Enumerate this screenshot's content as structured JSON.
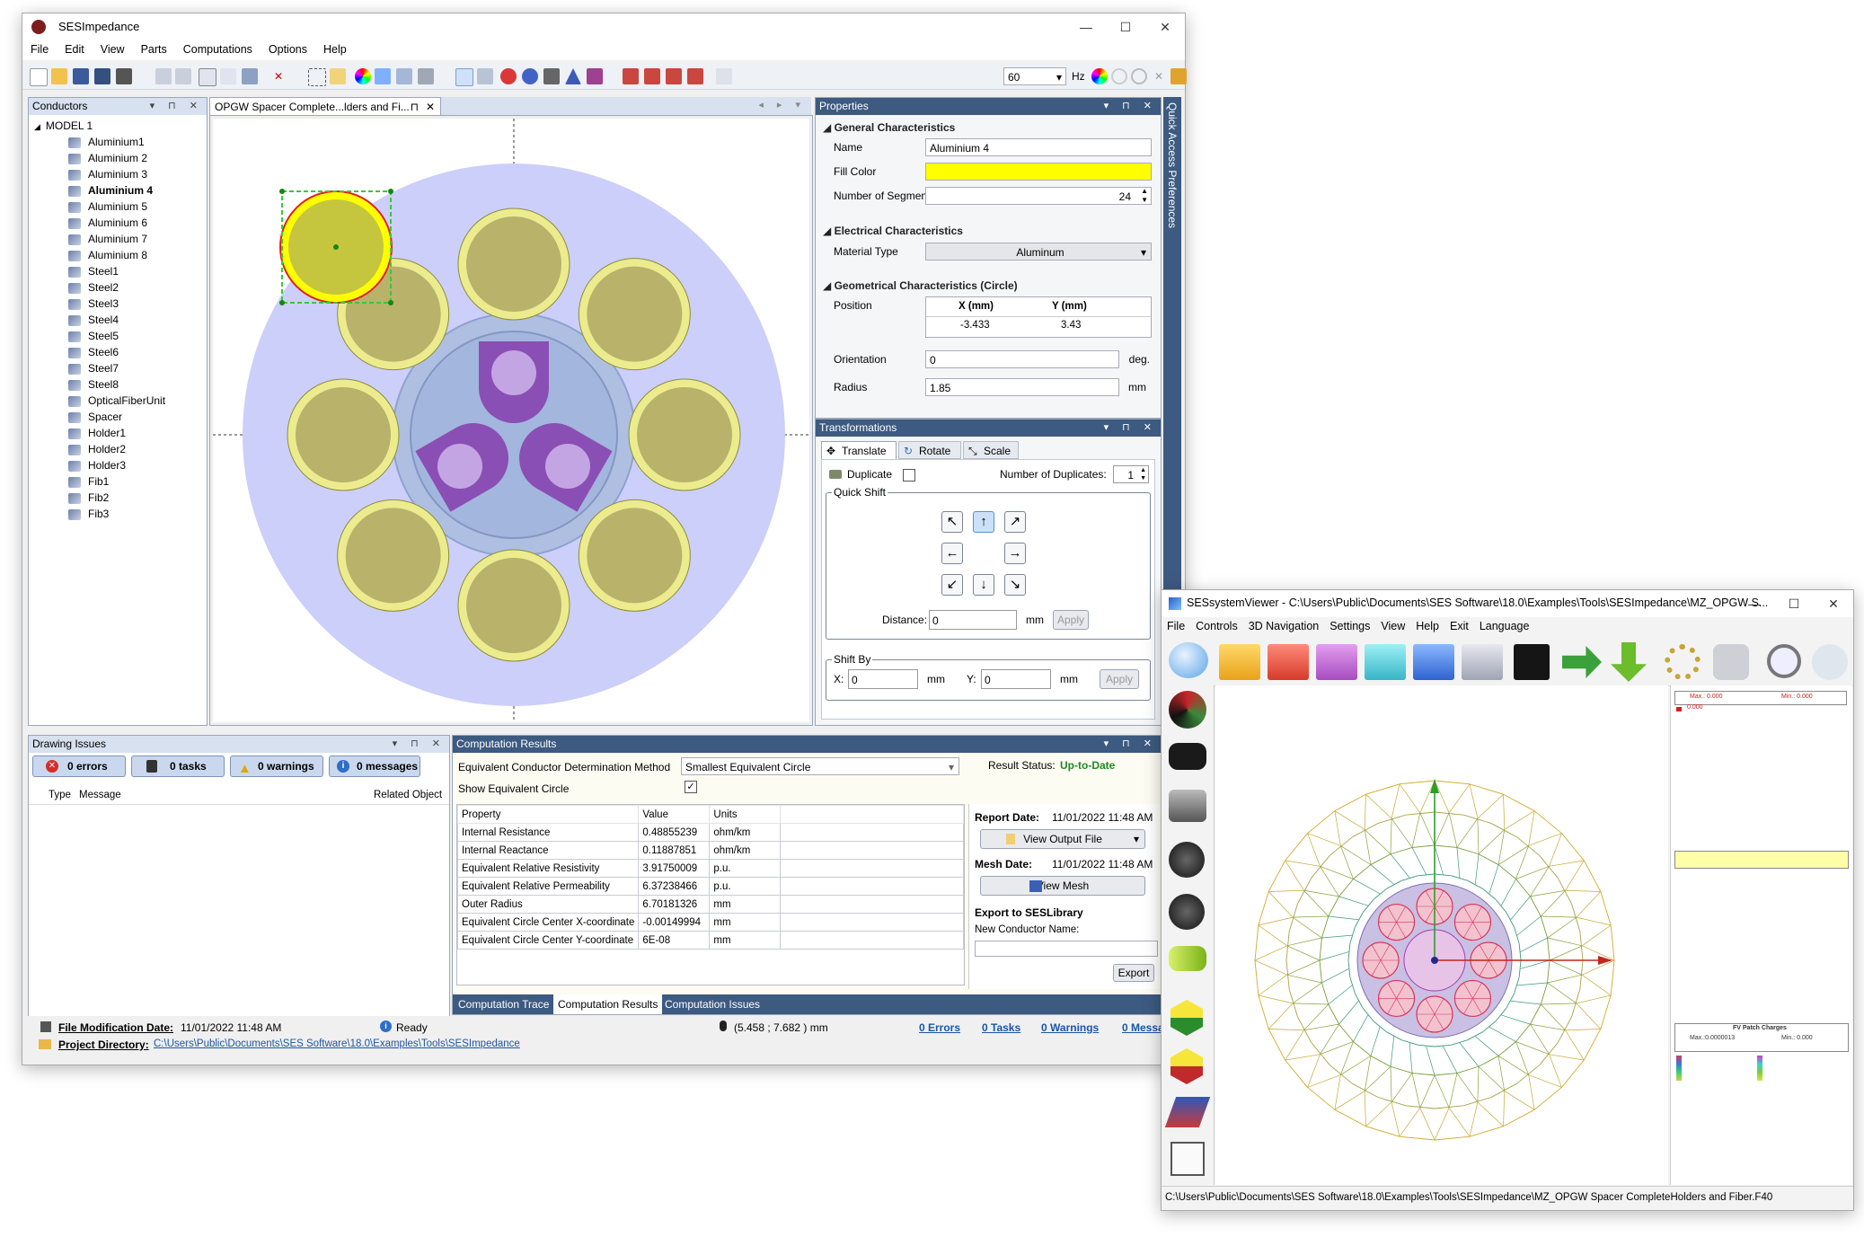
{
  "main_window": {
    "title": "SESImpedance",
    "menu": [
      "File",
      "Edit",
      "View",
      "Parts",
      "Computations",
      "Options",
      "Help"
    ],
    "toolbar_frequency": "60",
    "toolbar_unit": "Hz"
  },
  "conductors_panel": {
    "title": "Conductors",
    "model": "MODEL 1",
    "items": [
      "Aluminium1",
      "Aluminium 2",
      "Aluminium 3",
      "Aluminium 4",
      "Aluminium 5",
      "Aluminium 6",
      "Aluminium 7",
      "Aluminium 8",
      "Steel1",
      "Steel2",
      "Steel3",
      "Steel4",
      "Steel5",
      "Steel6",
      "Steel7",
      "Steel8",
      "OpticalFiberUnit",
      "Spacer",
      "Holder1",
      "Holder2",
      "Holder3",
      "Fib1",
      "Fib2",
      "Fib3"
    ],
    "selected": "Aluminium 4"
  },
  "drawing_tab": {
    "title": "OPGW Spacer Complete...lders and Fi..."
  },
  "properties": {
    "title": "Properties",
    "general_title": "General Characteristics",
    "name_label": "Name",
    "name_value": "Aluminium 4",
    "fill_label": "Fill Color",
    "fill_color": "#ffff00",
    "segments_label": "Number of Segments",
    "segments_value": "24",
    "electrical_title": "Electrical Characteristics",
    "material_label": "Material Type",
    "material_value": "Aluminum",
    "geometry_title": "Geometrical Characteristics (Circle)",
    "position_label": "Position",
    "x_header": "X (mm)",
    "y_header": "Y (mm)",
    "x_value": "-3.433",
    "y_value": "3.43",
    "orientation_label": "Orientation",
    "orientation_value": "0",
    "orientation_unit": "deg.",
    "radius_label": "Radius",
    "radius_value": "1.85",
    "radius_unit": "mm"
  },
  "quick_access_label": "Quick Access Preferences",
  "transformations": {
    "title": "Transformations",
    "tabs": [
      "Translate",
      "Rotate",
      "Scale"
    ],
    "duplicate_label": "Duplicate",
    "num_dup_label": "Number of Duplicates:",
    "num_dup_value": "1",
    "quick_shift_label": "Quick Shift",
    "distance_label": "Distance:",
    "distance_value": "0",
    "distance_unit": "mm",
    "apply_label": "Apply",
    "shift_by_label": "Shift By",
    "x_label": "X:",
    "x_value": "0",
    "y_label": "Y:",
    "y_value": "0",
    "unit": "mm"
  },
  "drawing_issues": {
    "title": "Drawing Issues",
    "errors": "0 errors",
    "tasks": "0 tasks",
    "warnings": "0 warnings",
    "messages": "0 messages",
    "col_type": "Type",
    "col_message": "Message",
    "col_related": "Related Object"
  },
  "computation_results": {
    "title": "Computation Results",
    "method_label": "Equivalent Conductor Determination Method",
    "method_value": "Smallest Equivalent Circle",
    "show_eq_label": "Show Equivalent Circle",
    "status_label": "Result Status:",
    "status_value": "Up-to-Date",
    "headers": [
      "Property",
      "Value",
      "Units"
    ],
    "rows": [
      [
        "Internal Resistance",
        "0.48855239",
        "ohm/km"
      ],
      [
        "Internal Reactance",
        "0.11887851",
        "ohm/km"
      ],
      [
        "Equivalent Relative Resistivity",
        "3.91750009",
        "p.u."
      ],
      [
        "Equivalent Relative Permeability",
        "6.37238466",
        "p.u."
      ],
      [
        "Outer Radius",
        "6.70181326",
        "mm"
      ],
      [
        "Equivalent Circle Center X-coordinate",
        "-0.00149994",
        "mm"
      ],
      [
        "Equivalent Circle Center Y-coordinate",
        "6E-08",
        "mm"
      ]
    ],
    "report_date_label": "Report Date:",
    "report_date": "11/01/2022 11:48 AM",
    "view_output": "View Output File",
    "mesh_date_label": "Mesh Date:",
    "mesh_date": "11/01/2022 11:48 AM",
    "view_mesh": "View Mesh",
    "export_title": "Export to SESLibrary",
    "new_name_label": "New Conductor Name:",
    "export_button": "Export",
    "bottom_tabs": [
      "Computation Trace",
      "Computation Results",
      "Computation Issues"
    ]
  },
  "status_bar": {
    "file_mod_label": "File Modification Date:",
    "file_mod_value": "11/01/2022 11:48 AM",
    "ready": "Ready",
    "coords": "(5.458 ; 7.682 ) mm",
    "errors": "0 Errors",
    "tasks": "0 Tasks",
    "warnings": "0 Warnings",
    "messages": "0 Messa",
    "project_label": "Project Directory:",
    "project_value": "C:\\Users\\Public\\Documents\\SES Software\\18.0\\Examples\\Tools\\SESImpedance"
  },
  "viewer_window": {
    "title": "SESsystemViewer - C:\\Users\\Public\\Documents\\SES Software\\18.0\\Examples\\Tools\\SESImpedance\\MZ_OPGW S...",
    "menu": [
      "File",
      "Controls",
      "3D Navigation",
      "Settings",
      "View",
      "Help",
      "Exit",
      "Language"
    ],
    "legend_max": "Max.: 0.000",
    "legend_min": "Min.: 0.000",
    "legend_entry": "0.000",
    "legend2_title": "FV Patch Charges",
    "legend2_max": "Max.:0.0000013",
    "legend2_min": "Min.: 0.000",
    "status_path": "C:\\Users\\Public\\Documents\\SES Software\\18.0\\Examples\\Tools\\SESImpedance\\MZ_OPGW Spacer CompleteHolders and Fiber.F40"
  }
}
